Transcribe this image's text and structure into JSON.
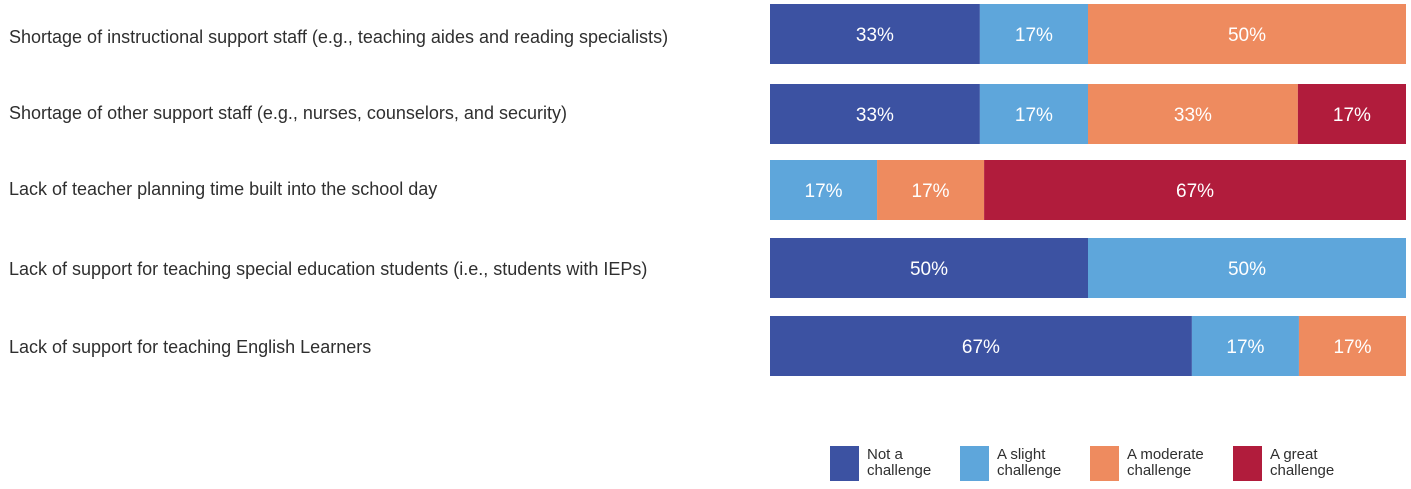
{
  "chart_data": {
    "type": "bar",
    "orientation": "horizontal",
    "stacked": true,
    "percent_stacked": true,
    "grid": false,
    "legend_position": "bottom-right",
    "categories": [
      "Shortage of instructional support staff (e.g., teaching aides and reading specialists)",
      "Shortage of other support staff (e.g., nurses, counselors, and security)",
      "Lack of teacher planning time built into the school day",
      "Lack of support for teaching special education students (i.e., students with IEPs)",
      "Lack of support for teaching English Learners"
    ],
    "series": [
      {
        "name": "Not a challenge",
        "color": "#3c52a2",
        "values": [
          33,
          33,
          0,
          50,
          67
        ]
      },
      {
        "name": "A slight challenge",
        "color": "#5ea6db",
        "values": [
          17,
          17,
          17,
          50,
          17
        ]
      },
      {
        "name": "A moderate challenge",
        "color": "#ee8b5f",
        "values": [
          50,
          33,
          17,
          0,
          17
        ]
      },
      {
        "name": "A great challenge",
        "color": "#b11c3c",
        "values": [
          0,
          17,
          67,
          0,
          0
        ]
      }
    ],
    "data_labels": [
      [
        "33%",
        "17%",
        "50%",
        ""
      ],
      [
        "33%",
        "17%",
        "33%",
        "17%"
      ],
      [
        "",
        "17%",
        "17%",
        "67%"
      ],
      [
        "50%",
        "50%",
        "",
        ""
      ],
      [
        "67%",
        "17%",
        "17%",
        ""
      ]
    ],
    "legend_labels": [
      "Not a\nchallenge",
      "A slight\nchallenge",
      "A moderate\nchallenge",
      "A great\nchallenge"
    ]
  }
}
